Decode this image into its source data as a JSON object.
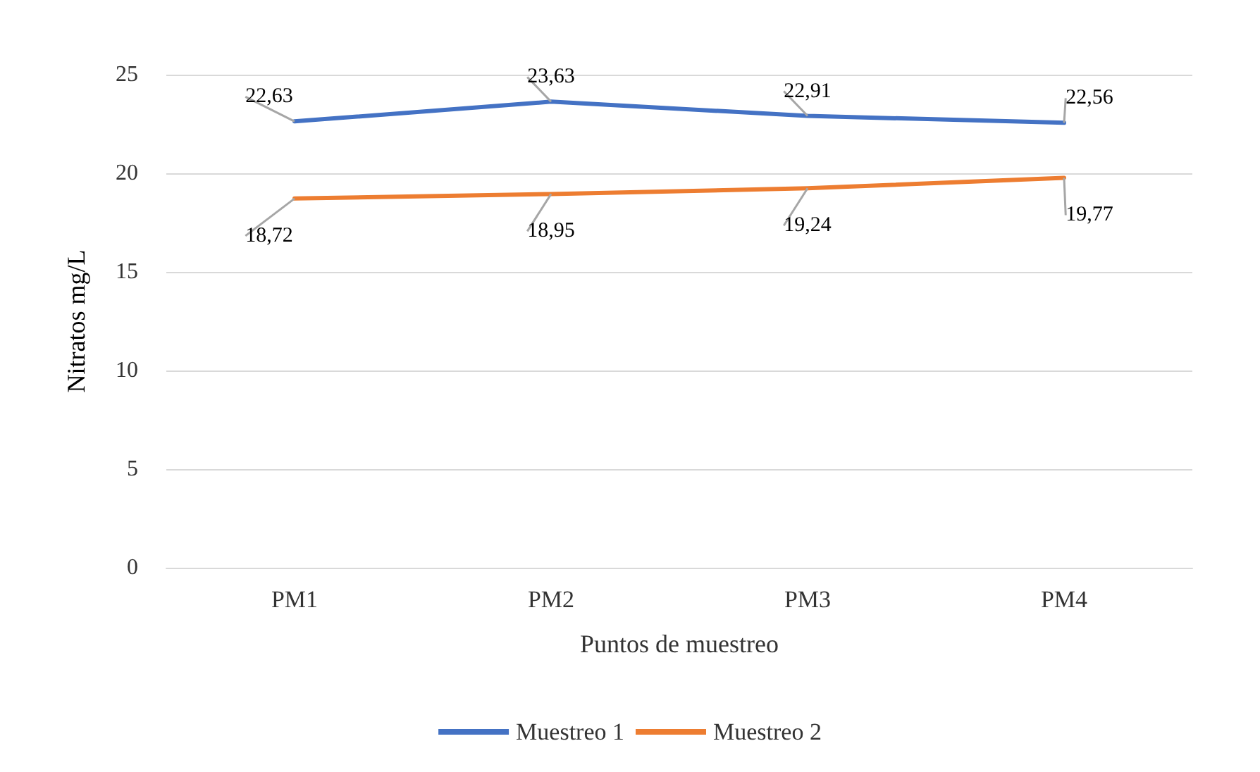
{
  "chart_data": {
    "type": "line",
    "xlabel": "Puntos de muestreo",
    "ylabel": "Nitratos mg/L",
    "categories": [
      "PM1",
      "PM2",
      "PM3",
      "PM4"
    ],
    "series": [
      {
        "name": "Muestreo 1",
        "color": "#4472c4",
        "values": [
          22.63,
          23.63,
          22.91,
          22.56
        ],
        "value_labels": [
          "22,63",
          "23,63",
          "22,91",
          "22,56"
        ]
      },
      {
        "name": "Muestreo 2",
        "color": "#ed7d31",
        "values": [
          18.72,
          18.95,
          19.24,
          19.77
        ],
        "value_labels": [
          "18,72",
          "18,95",
          "19,24",
          "19,77"
        ]
      }
    ],
    "ylim": [
      0,
      25
    ],
    "yticks": [
      0,
      5,
      10,
      15,
      20,
      25
    ],
    "grid": "y",
    "legend": "bottom",
    "marker": "none",
    "line_style": "solid"
  }
}
